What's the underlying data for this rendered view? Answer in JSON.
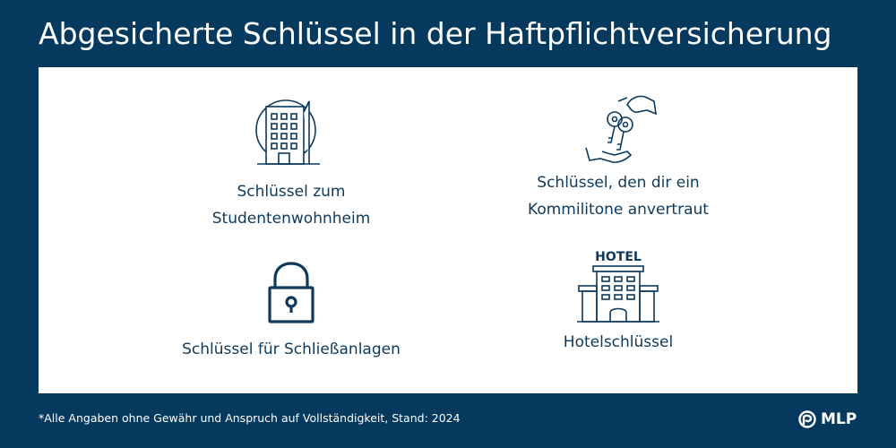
{
  "header": {
    "title": "Abgesicherte Schlüssel in der Haftpflichtversicherung"
  },
  "items": [
    {
      "icon": "building-icon",
      "lines": [
        "Schlüssel zum",
        "Studentenwohnheim"
      ]
    },
    {
      "icon": "key-handover-icon",
      "lines": [
        "Schlüssel, den dir ein",
        "Kommilitone anvertraut"
      ]
    },
    {
      "icon": "padlock-icon",
      "lines": [
        "Schlüssel für Schließanlagen"
      ]
    },
    {
      "icon": "hotel-icon",
      "lines": [
        "Hotelschlüssel"
      ],
      "sign_text": "HOTEL"
    }
  ],
  "footer": {
    "footnote": "*Alle Angaben ohne Gewähr und Anspruch auf Vollständigkeit, Stand: 2024",
    "logo_text": "MLP"
  },
  "colors": {
    "background": "#053a5e",
    "panel": "#ffffff",
    "text": "#0d3a5c",
    "footer_text": "#ffffff"
  }
}
